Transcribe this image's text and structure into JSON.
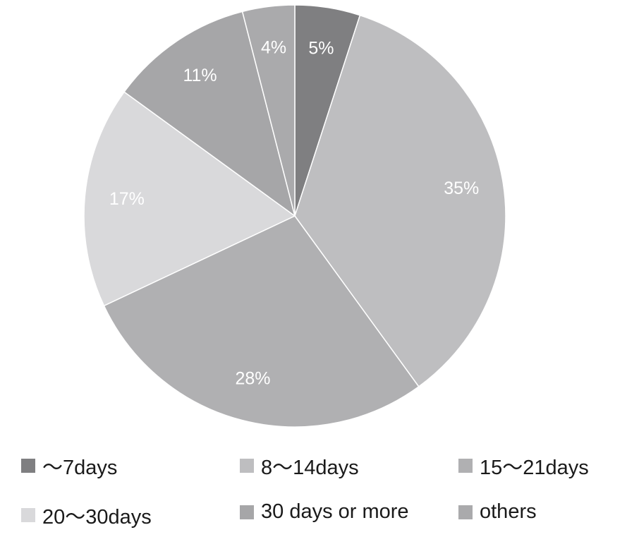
{
  "chart_data": {
    "type": "pie",
    "start_angle": "top, clockwise",
    "slices": [
      {
        "label": "～7days",
        "value": 5,
        "data_label": "5%",
        "color": "#7f7f81"
      },
      {
        "label": "8～14days",
        "value": 35,
        "data_label": "35%",
        "color": "#bebec0"
      },
      {
        "label": "15～21days",
        "value": 28,
        "data_label": "28%",
        "color": "#b0b0b2"
      },
      {
        "label": "20～30days",
        "value": 17,
        "data_label": "17%",
        "color": "#d9d9db"
      },
      {
        "label": "30 days or more",
        "value": 11,
        "data_label": "11%",
        "color": "#a6a6a8"
      },
      {
        "label": "others",
        "value": 4,
        "data_label": "4%",
        "color": "#aaaaac"
      }
    ],
    "legend_placement": "bottom"
  }
}
